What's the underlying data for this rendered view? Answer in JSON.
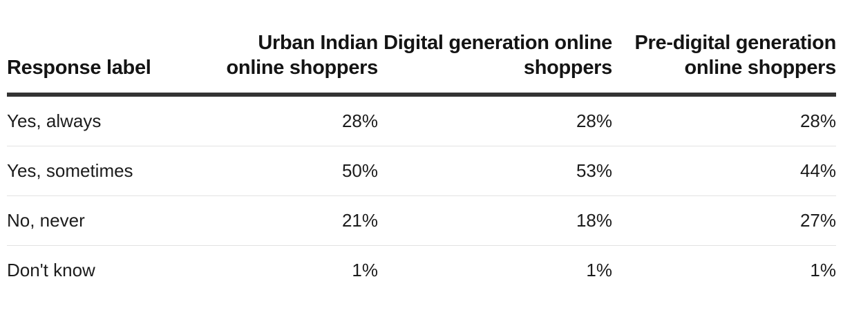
{
  "chart_data": {
    "type": "table",
    "columns": [
      "Response label",
      "Urban Indian online shoppers",
      "Digital generation online shoppers",
      "Pre-digital generation online shoppers"
    ],
    "rows": [
      {
        "label": "Yes, always",
        "values": [
          "28%",
          "28%",
          "28%"
        ]
      },
      {
        "label": "Yes, sometimes",
        "values": [
          "50%",
          "53%",
          "44%"
        ]
      },
      {
        "label": "No, never",
        "values": [
          "21%",
          "18%",
          "27%"
        ]
      },
      {
        "label": "Don't know",
        "values": [
          "1%",
          "1%",
          "1%"
        ]
      }
    ]
  }
}
